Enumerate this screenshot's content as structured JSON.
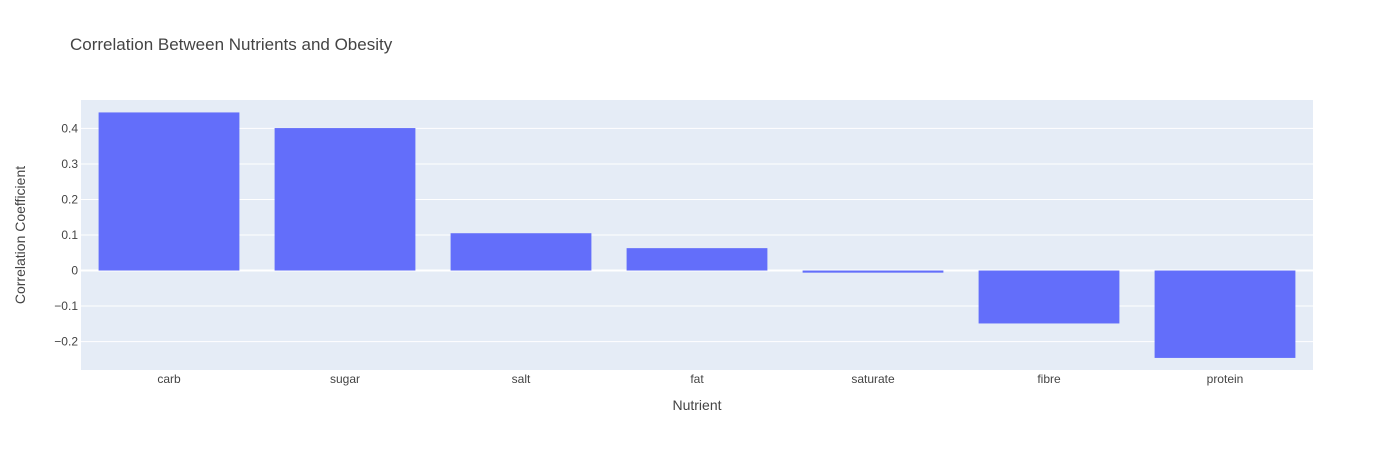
{
  "chart_data": {
    "type": "bar",
    "title": "Correlation Between Nutrients and Obesity",
    "xlabel": "Nutrient",
    "ylabel": "Correlation Coefficient",
    "categories": [
      "carb",
      "sugar",
      "salt",
      "fat",
      "saturate",
      "fibre",
      "protein"
    ],
    "values": [
      0.445,
      0.401,
      0.105,
      0.063,
      -0.006,
      -0.149,
      -0.246
    ],
    "ylim": [
      -0.28,
      0.48
    ],
    "yticks": [
      -0.2,
      -0.1,
      0,
      0.1,
      0.2,
      0.3,
      0.4
    ],
    "ytick_labels": [
      "−0.2",
      "−0.1",
      "0",
      "0.1",
      "0.2",
      "0.3",
      "0.4"
    ],
    "grid": true,
    "bar_color": "#636efa",
    "plot_bg": "#e5ecf6"
  }
}
